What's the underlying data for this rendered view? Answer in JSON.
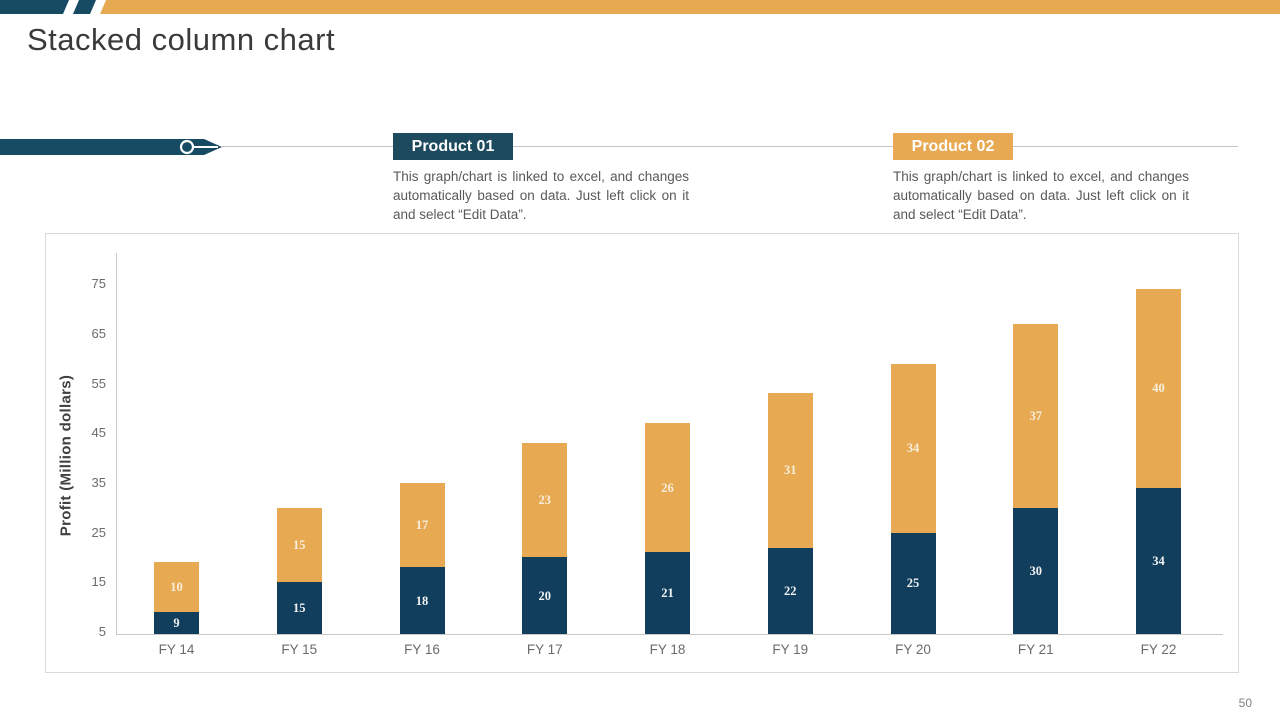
{
  "slide": {
    "title": "Stacked column chart",
    "page_number": "50"
  },
  "colors": {
    "teal": "#174a63",
    "navy_bar": "#113e5c",
    "orange": "#e8a953",
    "gray_line": "#c6c6c6",
    "navy_label": "#f2f2f2",
    "orange_label": "#f7efdc"
  },
  "legend": [
    {
      "label": "Product 01",
      "description": "This graph/chart is linked to excel, and changes automatically based on data. Just left click on it and select “Edit Data”."
    },
    {
      "label": "Product 02",
      "description": "This graph/chart is linked to excel, and changes automatically based on data. Just left click on it and select “Edit Data”."
    }
  ],
  "chart_data": {
    "type": "bar",
    "stacked": true,
    "title": "",
    "xlabel": "",
    "ylabel": "Profit  (Million dollars)",
    "categories": [
      "FY 14",
      "FY 15",
      "FY 16",
      "FY 17",
      "FY 18",
      "FY 19",
      "FY 20",
      "FY 21",
      "FY 22"
    ],
    "series": [
      {
        "name": "Product 01",
        "color": "#113e5c",
        "label_color": "#f2f2f2",
        "values": [
          9,
          15,
          18,
          20,
          21,
          22,
          25,
          30,
          34
        ]
      },
      {
        "name": "Product 02",
        "color": "#e8a953",
        "label_color": "#f7efdc",
        "values": [
          10,
          15,
          17,
          23,
          26,
          31,
          34,
          37,
          40
        ]
      }
    ],
    "totals": [
      19,
      30,
      35,
      43,
      47,
      53,
      59,
      67,
      74
    ],
    "yticks": [
      5,
      15,
      25,
      35,
      45,
      55,
      65,
      75
    ],
    "ylim": [
      4.6,
      79
    ],
    "grid": false,
    "legend_position": "none"
  }
}
